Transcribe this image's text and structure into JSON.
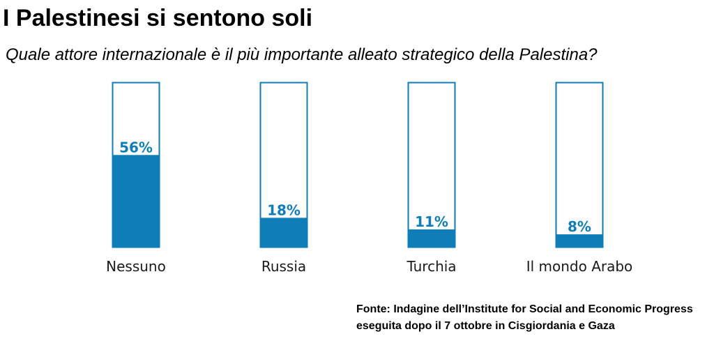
{
  "title": "I Palestinesi si sentono soli",
  "subtitle": "Quale attore internazionale è il più importante alleato strategico della Palestina?",
  "source": {
    "line1": "Fonte: Indagine dell’Institute for Social and Economic Progress",
    "line2": "eseguita dopo il 7 ottobre in Cisgiordania e Gaza"
  },
  "colors": {
    "bar_fill": "#0e7db8",
    "bar_outline": "#0e7db8",
    "value_label": "#0e7db8",
    "category_label": "#1a1a1a"
  },
  "chart_data": {
    "type": "bar",
    "categories": [
      "Nessuno",
      "Russia",
      "Turchia",
      "Il mondo Arabo"
    ],
    "values": [
      56,
      18,
      11,
      8
    ],
    "value_labels": [
      "56%",
      "18%",
      "11%",
      "8%"
    ],
    "ylim": [
      0,
      100
    ],
    "grid": false,
    "legend": "none"
  }
}
